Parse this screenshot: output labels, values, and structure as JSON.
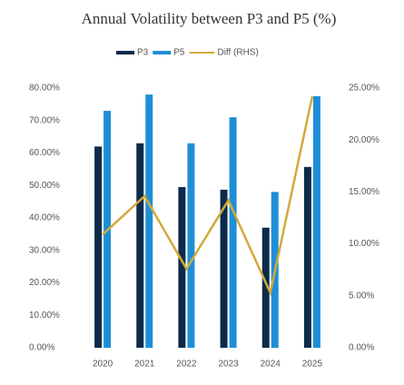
{
  "chart_data": {
    "type": "bar",
    "title": "Annual Volatility between P3 and P5 (%)",
    "categories": [
      "2020",
      "2021",
      "2022",
      "2023",
      "2024",
      "2025"
    ],
    "series": [
      {
        "name": "P3",
        "color": "#0d2a4a",
        "values": [
          62,
          63,
          49.5,
          48.7,
          37,
          55.7
        ]
      },
      {
        "name": "P5",
        "color": "#1e8fd6",
        "values": [
          73,
          78,
          63,
          71,
          48,
          77.5
        ]
      },
      {
        "name": "Diff (RHS)",
        "color": "#d4a93a",
        "type": "line",
        "axis": "y2",
        "values": [
          10.9,
          14.6,
          7.6,
          14.2,
          5.3,
          24.2
        ]
      }
    ],
    "ylim": [
      0,
      80
    ],
    "yticks": [
      {
        "value": 0,
        "label": "0.00%"
      },
      {
        "value": 10,
        "label": "10.00%"
      },
      {
        "value": 20,
        "label": "20.00%"
      },
      {
        "value": 30,
        "label": "30.00%"
      },
      {
        "value": 40,
        "label": "40.00%"
      },
      {
        "value": 50,
        "label": "50.00%"
      },
      {
        "value": 60,
        "label": "60.00%"
      },
      {
        "value": 70,
        "label": "70.00%"
      },
      {
        "value": 80,
        "label": "80.00%"
      }
    ],
    "y2lim": [
      0,
      25
    ],
    "y2ticks": [
      {
        "value": 0,
        "label": "0.00%"
      },
      {
        "value": 5,
        "label": "5.00%"
      },
      {
        "value": 10,
        "label": "10.00%"
      },
      {
        "value": 15,
        "label": "15.00%"
      },
      {
        "value": 20,
        "label": "20.00%"
      },
      {
        "value": 25,
        "label": "25.00%"
      }
    ],
    "grid": false
  }
}
